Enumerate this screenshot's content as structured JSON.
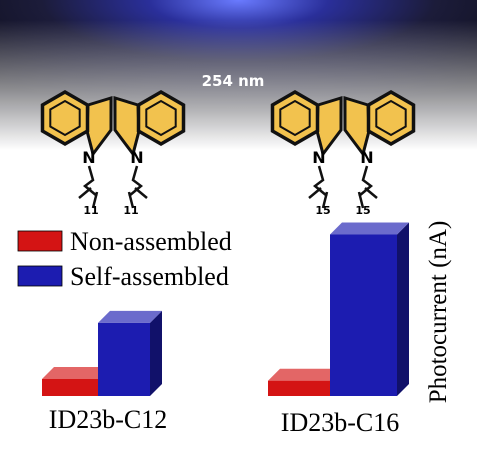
{
  "chart_data": {
    "type": "bar",
    "categories": [
      "ID23b-C12",
      "ID23b-C16"
    ],
    "series": [
      {
        "name": "Non-assembled",
        "color": "#d41414",
        "values": [
          10,
          9
        ]
      },
      {
        "name": "Self-assembled",
        "color": "#1c1cb0",
        "values": [
          43,
          95
        ]
      }
    ],
    "ylim": [
      0,
      100
    ],
    "y_label": "Photocurrent (nA)",
    "annotations": [
      "254 nm"
    ],
    "molecules": [
      {
        "atoms": [
          "N",
          "N"
        ],
        "chain_labels": [
          "11",
          "11"
        ]
      },
      {
        "atoms": [
          "N",
          "N"
        ],
        "chain_labels": [
          "15",
          "15"
        ]
      }
    ]
  }
}
